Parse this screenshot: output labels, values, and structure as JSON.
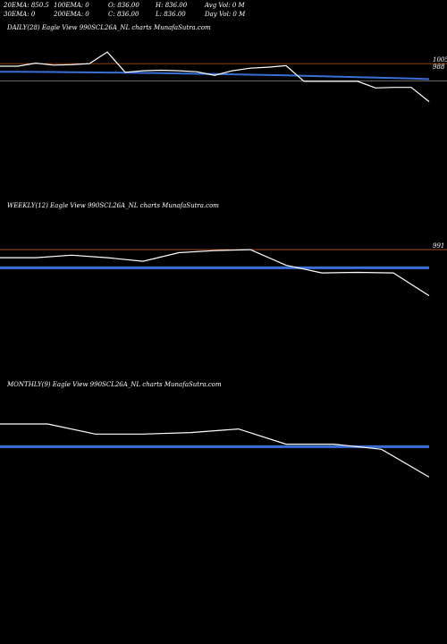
{
  "header": {
    "row1": [
      "20EMA: 850.5",
      "100EMA: 0",
      "O: 836.00",
      "H: 836.00",
      "Avg Vol: 0  M"
    ],
    "row2": [
      "30EMA: 0",
      "200EMA: 0",
      "C: 836.00",
      "L: 836.00",
      "Day Vol: 0  M"
    ]
  },
  "colors": {
    "price": "#ffffff",
    "ema": "#3a6fd8",
    "ref": "#b8582a",
    "background": "#000000"
  },
  "chart_data": [
    {
      "type": "line",
      "title": "DAILY(28) Eagle   View  990SCL26A_NL  charts MunafaSutra.com",
      "ref_label": "1005",
      "ref_label2": "988",
      "ref": 1005,
      "ylim": [
        795,
        1060
      ],
      "series": [
        {
          "values": [
            1000,
            1000,
            1006,
            1002,
            1003,
            1005,
            1028,
            988,
            991,
            992,
            991,
            989,
            982,
            991,
            996,
            998,
            1001,
            970,
            970,
            970,
            970,
            957,
            958,
            958,
            930
          ]
        },
        {
          "values": [
            989,
            989,
            988.7,
            988.4,
            988.1,
            987.8,
            987.4,
            987,
            986.6,
            986.1,
            985.6,
            985,
            984.4,
            983.8,
            983.1,
            982.4,
            981.7,
            980.9,
            980.1,
            979.3,
            978.4,
            977.5,
            976.5,
            975.5,
            974.4
          ]
        }
      ],
      "ref_line2": 971
    },
    {
      "type": "line",
      "title": "WEEKLY(12) Eagle   View  990SCL26A_NL  charts MunafaSutra.com",
      "ref_label": "991",
      "ref": 991,
      "ylim": [
        795,
        1060
      ],
      "series": [
        {
          "values": [
            975,
            975,
            980,
            975,
            968,
            985,
            989,
            991,
            960,
            945,
            946,
            945,
            900
          ]
        },
        {
          "values": [
            955,
            955,
            955,
            955,
            955,
            955,
            955,
            955,
            955,
            955,
            955,
            955,
            955
          ]
        }
      ]
    },
    {
      "type": "line",
      "title": "MONTHLY(9) Eagle   View  990SCL26A_NL  charts MunafaSutra.com",
      "ylim": [
        795,
        1060
      ],
      "series": [
        {
          "values": [
            1000,
            1000,
            980,
            980,
            983,
            990,
            960,
            960,
            950,
            895
          ]
        },
        {
          "values": [
            955,
            955,
            955,
            955,
            955,
            955,
            955,
            955,
            955,
            955
          ]
        }
      ]
    }
  ]
}
